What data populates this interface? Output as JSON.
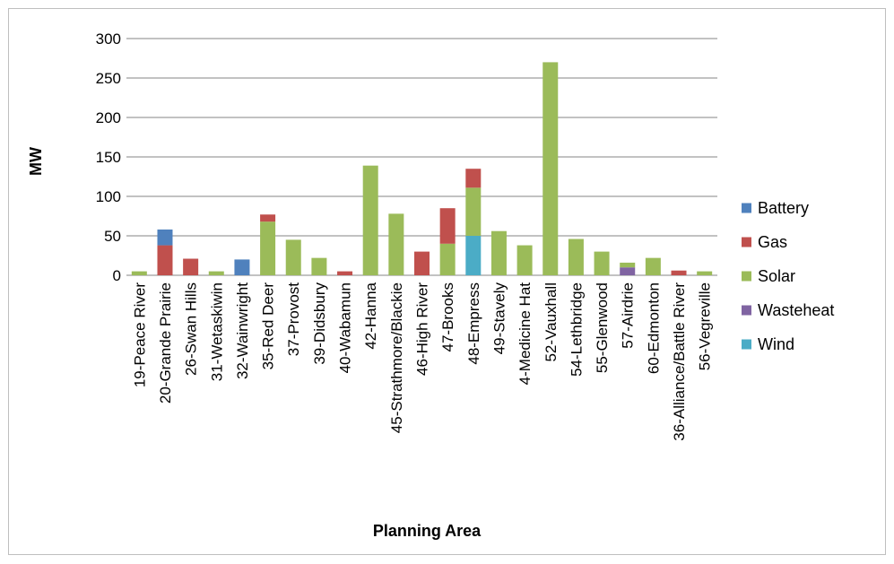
{
  "chart_data": {
    "type": "bar",
    "stacked": true,
    "title": "",
    "xlabel": "Planning Area",
    "ylabel": "MW",
    "ylim": [
      0,
      300
    ],
    "yticks": [
      0,
      50,
      100,
      150,
      200,
      250,
      300
    ],
    "grid": true,
    "legend_position": "right",
    "categories": [
      "19-Peace River",
      "20-Grande Prairie",
      "26-Swan Hills",
      "31-Wetaskiwin",
      "32-Wainwright",
      "35-Red Deer",
      "37-Provost",
      "39-Didsbury",
      "40-Wabamun",
      "42-Hanna",
      "45-Strathmore/Blackie",
      "46-High River",
      "47-Brooks",
      "48-Empress",
      "49-Stavely",
      "4-Medicine Hat",
      "52-Vauxhall",
      "54-Lethbridge",
      "55-Glenwood",
      "57-Airdrie",
      "60-Edmonton",
      "36-Alliance/Battle River",
      "56-Vegreville"
    ],
    "series": [
      {
        "name": "Wind",
        "color": "#4bacc6",
        "values": [
          0,
          0,
          0,
          0,
          0,
          0,
          0,
          0,
          0,
          0,
          0,
          0,
          0,
          50,
          0,
          0,
          0,
          0,
          0,
          0,
          0,
          0,
          0
        ]
      },
      {
        "name": "Wasteheat",
        "color": "#8064a2",
        "values": [
          0,
          0,
          0,
          0,
          0,
          0,
          0,
          0,
          0,
          0,
          0,
          0,
          0,
          0,
          0,
          0,
          0,
          0,
          0,
          10,
          0,
          0,
          0
        ]
      },
      {
        "name": "Solar",
        "color": "#9bbb59",
        "values": [
          5,
          0,
          0,
          5,
          0,
          68,
          45,
          22,
          0,
          139,
          78,
          0,
          40,
          61,
          56,
          38,
          270,
          46,
          30,
          6,
          22,
          0,
          5
        ]
      },
      {
        "name": "Gas",
        "color": "#c0504d",
        "values": [
          0,
          38,
          21,
          0,
          0,
          9,
          0,
          0,
          5,
          0,
          0,
          30,
          45,
          24,
          0,
          0,
          0,
          0,
          0,
          0,
          0,
          6,
          0
        ]
      },
      {
        "name": "Battery",
        "color": "#4f81bd",
        "values": [
          0,
          20,
          0,
          0,
          20,
          0,
          0,
          0,
          0,
          0,
          0,
          0,
          0,
          0,
          0,
          0,
          0,
          0,
          0,
          0,
          0,
          0,
          0
        ]
      }
    ],
    "legend_order": [
      "Battery",
      "Gas",
      "Solar",
      "Wasteheat",
      "Wind"
    ],
    "gridline_color": "#868686"
  }
}
